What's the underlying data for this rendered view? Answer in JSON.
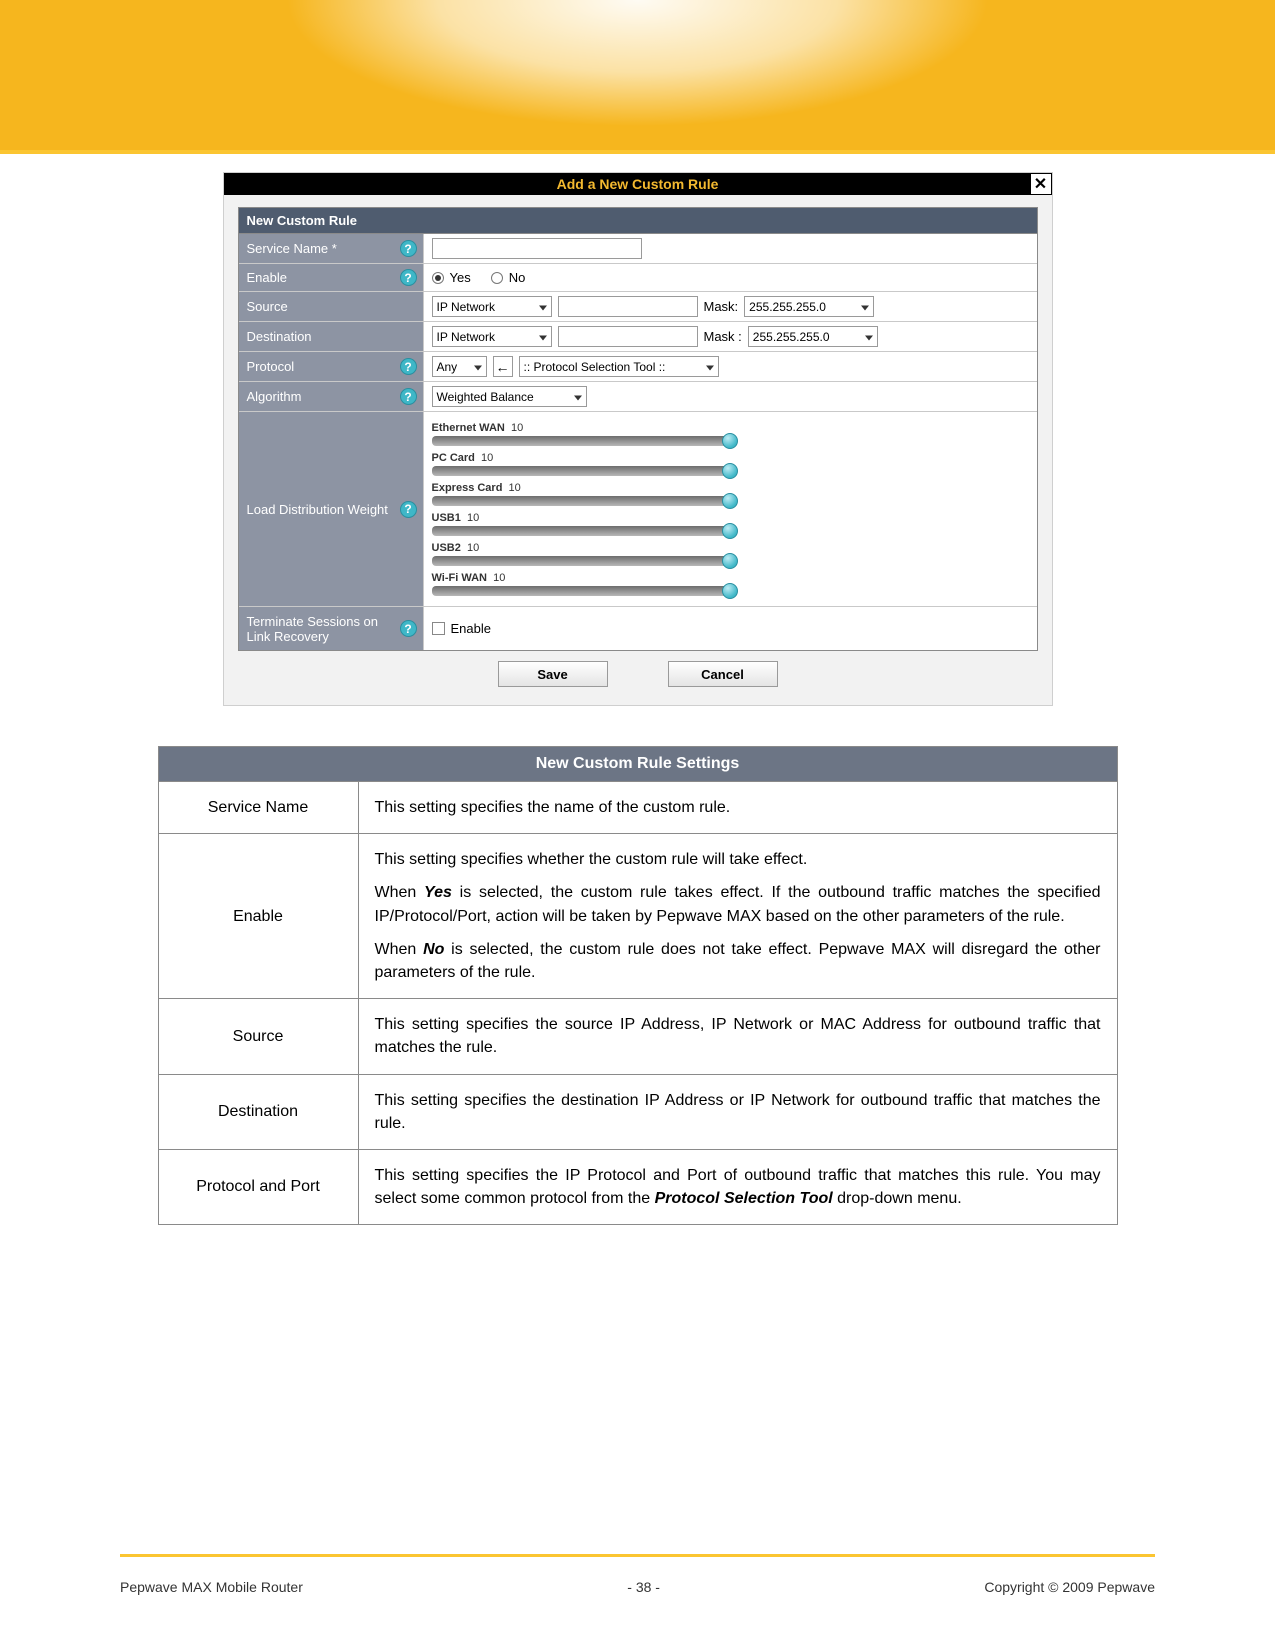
{
  "colors": {
    "header_yellow": "#f6b61e",
    "dialog_title_text": "#f3b92f",
    "section_header_bg": "#4f5c6f",
    "label_cell_bg": "#8d94a3",
    "help_badge_bg": "#3fb7c7",
    "settings_header_bg": "#6c7585",
    "border": "#8a8a8a"
  },
  "dialog": {
    "title": "Add a New Custom Rule",
    "close_glyph": "✕",
    "section": "New Custom Rule",
    "rows": {
      "service_name": {
        "label": "Service Name *",
        "has_help": true,
        "value": ""
      },
      "enable": {
        "label": "Enable",
        "has_help": true,
        "yes": "Yes",
        "no": "No",
        "selected": "yes"
      },
      "source": {
        "label": "Source",
        "has_help": false,
        "type_sel": "IP Network",
        "ip": "",
        "mask_lbl": "Mask:",
        "mask": "255.255.255.0"
      },
      "destination": {
        "label": "Destination",
        "has_help": false,
        "type_sel": "IP Network",
        "ip": "",
        "mask_lbl": "Mask :",
        "mask": "255.255.255.0"
      },
      "protocol": {
        "label": "Protocol",
        "has_help": true,
        "any": "Any",
        "arrow": "←",
        "tool": ":: Protocol Selection Tool ::"
      },
      "algorithm": {
        "label": "Algorithm",
        "has_help": true,
        "value": "Weighted Balance"
      },
      "load_dist": {
        "label": "Load Distribution Weight",
        "has_help": true,
        "sliders": [
          {
            "name": "Ethernet WAN",
            "value": 10
          },
          {
            "name": "PC Card",
            "value": 10
          },
          {
            "name": "Express Card",
            "value": 10
          },
          {
            "name": "USB1",
            "value": 10
          },
          {
            "name": "USB2",
            "value": 10
          },
          {
            "name": "Wi-Fi WAN",
            "value": 10
          }
        ]
      },
      "terminate": {
        "label": "Terminate Sessions on Link Recovery",
        "has_help": true,
        "chk_label": "Enable"
      }
    },
    "buttons": {
      "save": "Save",
      "cancel": "Cancel"
    }
  },
  "settings_table": {
    "header": "New Custom Rule Settings",
    "rows": [
      {
        "label": "Service Name",
        "paras": [
          {
            "text": "This setting specifies the name of the custom rule."
          }
        ]
      },
      {
        "label": "Enable",
        "paras": [
          {
            "text": "This setting specifies whether the custom rule will take effect."
          },
          {
            "html": "When <span class='bi'>Yes</span> is selected, the custom rule takes effect.  If the outbound traffic matches the specified IP/Protocol/Port, action will be taken by Pepwave MAX based on the other parameters of the rule."
          },
          {
            "html": "When <span class='bi'>No</span> is selected, the custom rule does not take effect.  Pepwave MAX will disregard the other parameters of the rule."
          }
        ]
      },
      {
        "label": "Source",
        "paras": [
          {
            "text": "This setting specifies the source IP Address, IP Network or MAC Address for outbound traffic that matches the rule."
          }
        ]
      },
      {
        "label": "Destination",
        "paras": [
          {
            "text": "This setting specifies the destination IP Address or IP Network for outbound traffic that matches the rule."
          }
        ]
      },
      {
        "label": "Protocol and Port",
        "paras": [
          {
            "html": "This setting specifies the IP Protocol and Port of outbound traffic that matches this rule.  You may select some common protocol from the <span class='bi'>Protocol Selection Tool</span> drop-down menu."
          }
        ]
      }
    ]
  },
  "footer": {
    "left": "Pepwave MAX Mobile Router",
    "center": "- 38 -",
    "right": "Copyright © 2009 Pepwave"
  }
}
